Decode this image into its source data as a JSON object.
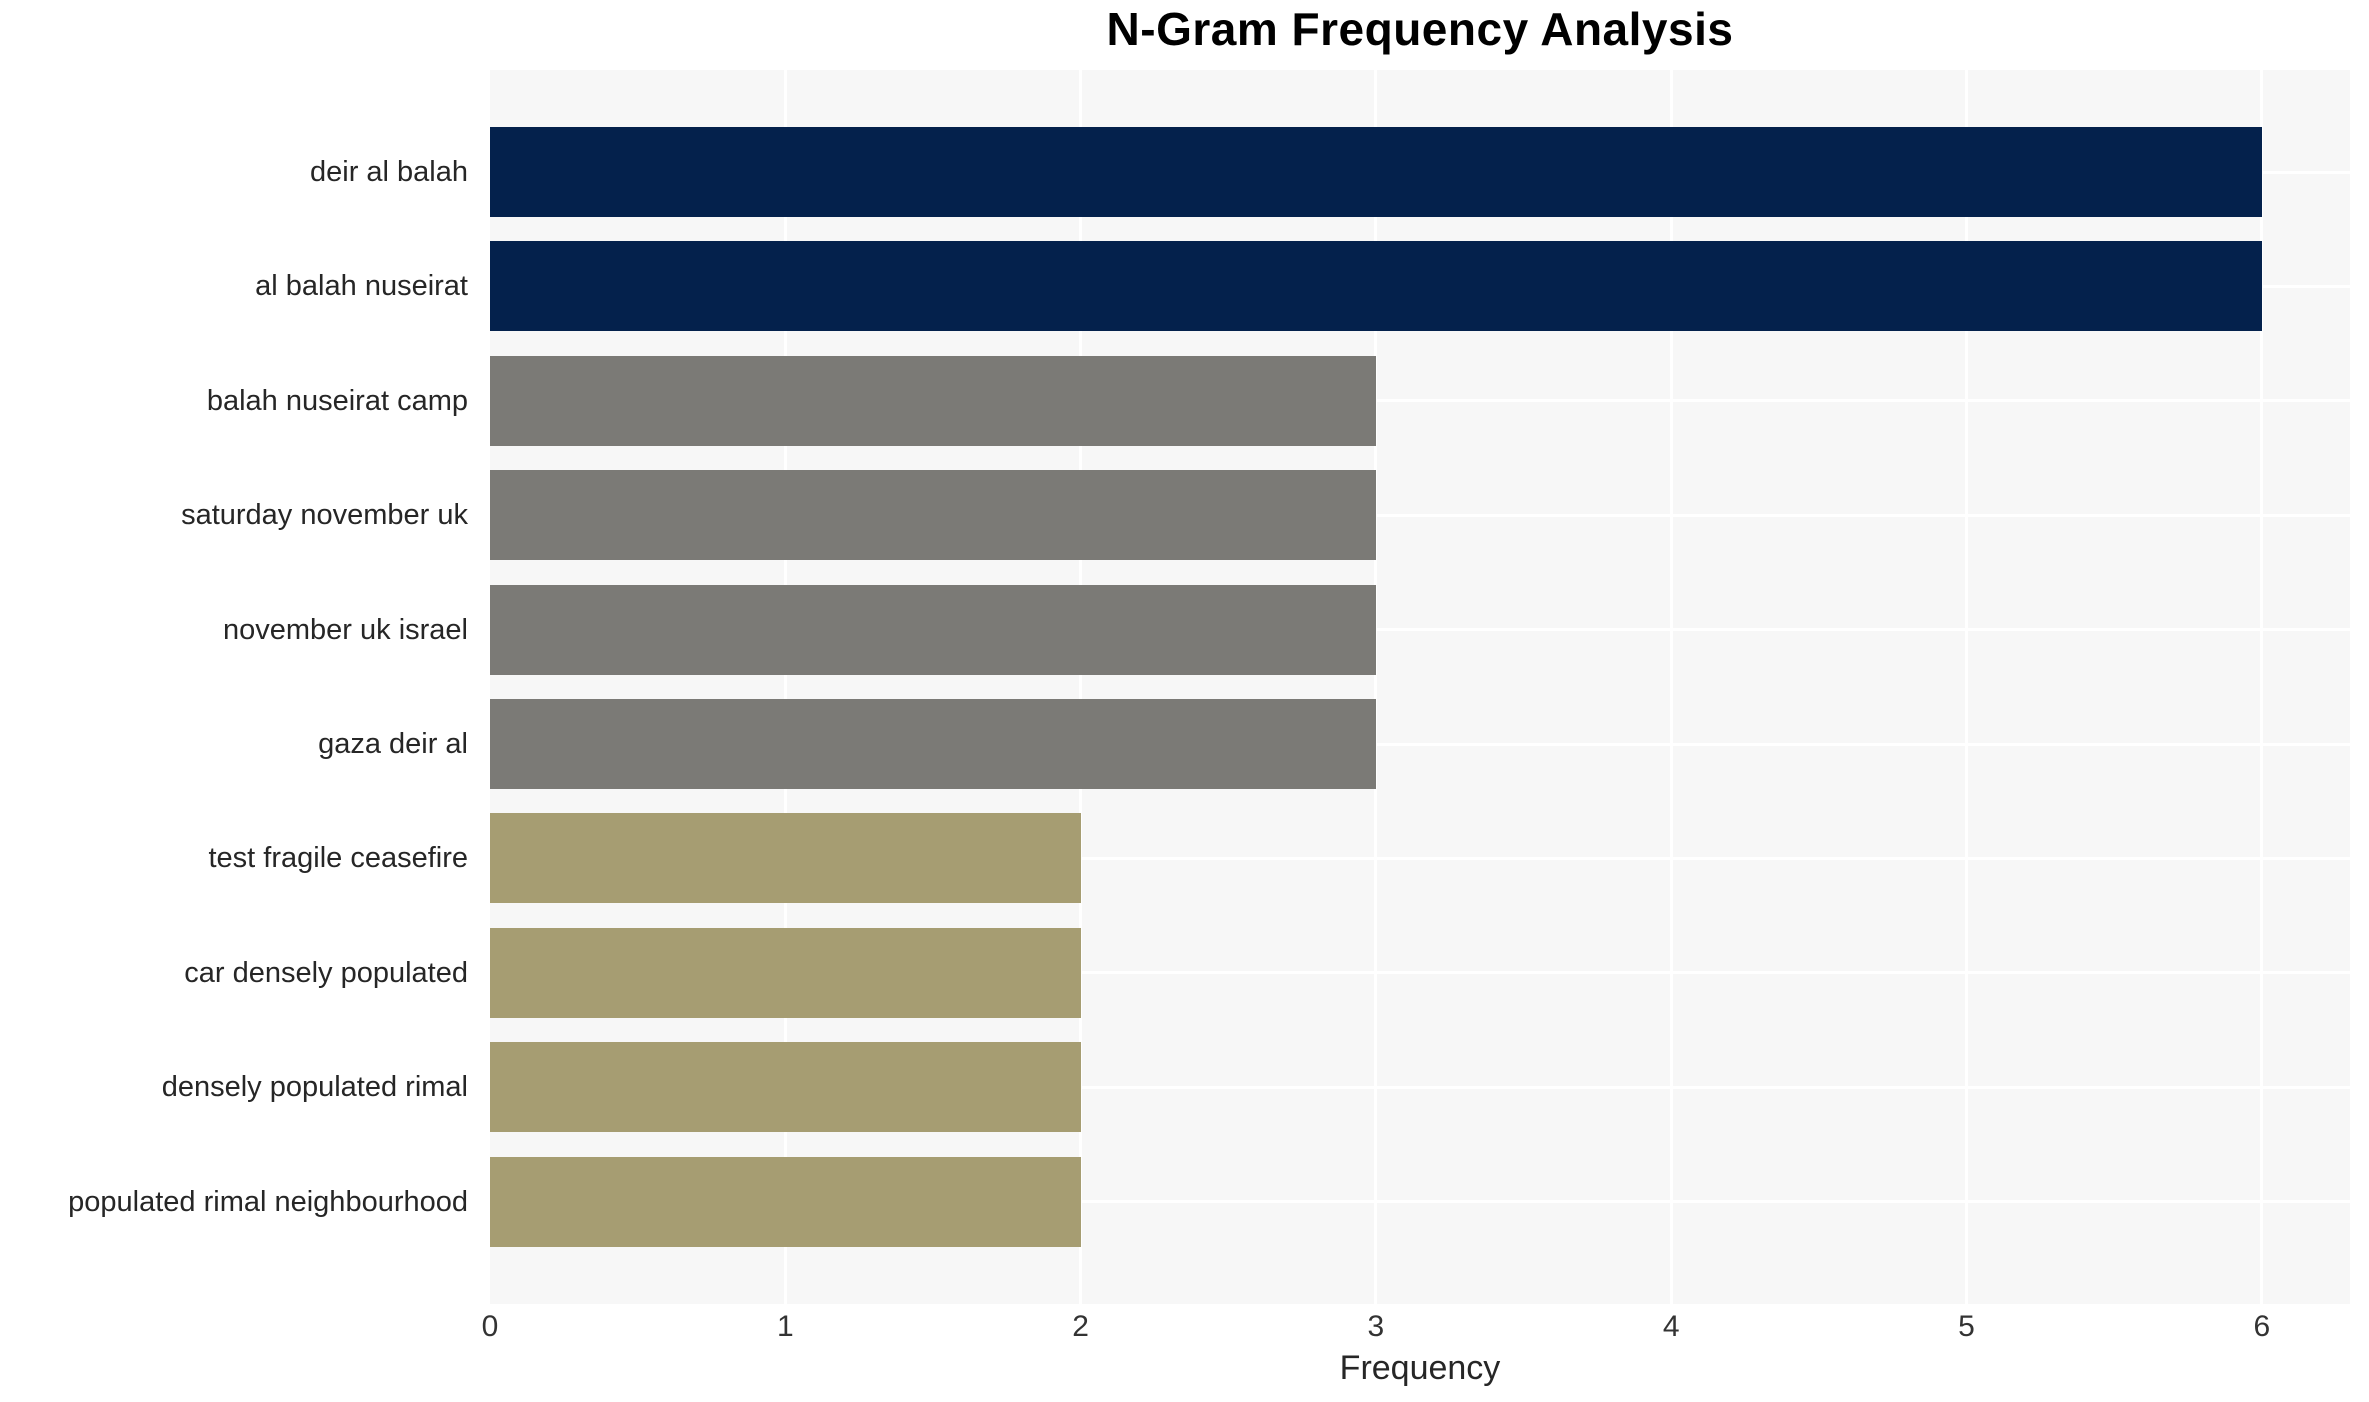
{
  "chart_data": {
    "type": "bar",
    "orientation": "horizontal",
    "title": "N-Gram Frequency Analysis",
    "xlabel": "Frequency",
    "ylabel": "",
    "categories": [
      "deir al balah",
      "al balah nuseirat",
      "balah nuseirat camp",
      "saturday november uk",
      "november uk israel",
      "gaza deir al",
      "test fragile ceasefire",
      "car densely populated",
      "densely populated rimal",
      "populated rimal neighbourhood"
    ],
    "values": [
      6,
      6,
      3,
      3,
      3,
      3,
      2,
      2,
      2,
      2
    ],
    "bar_colors": [
      "#04214c",
      "#04214c",
      "#7b7a76",
      "#7b7a76",
      "#7b7a76",
      "#7b7a76",
      "#a69d72",
      "#a69d72",
      "#a69d72",
      "#a69d72"
    ],
    "xticks": [
      "0",
      "1",
      "2",
      "3",
      "4",
      "5",
      "6"
    ],
    "xlim": [
      0,
      6.3
    ],
    "grid": true,
    "legend": false,
    "colors": {
      "navy": "#04214c",
      "gray": "#7b7a76",
      "olive": "#a69d72",
      "plot_background": "#f7f7f7",
      "gridline": "#ffffff",
      "figure_background": "#ffffff",
      "text": "#262626"
    }
  }
}
